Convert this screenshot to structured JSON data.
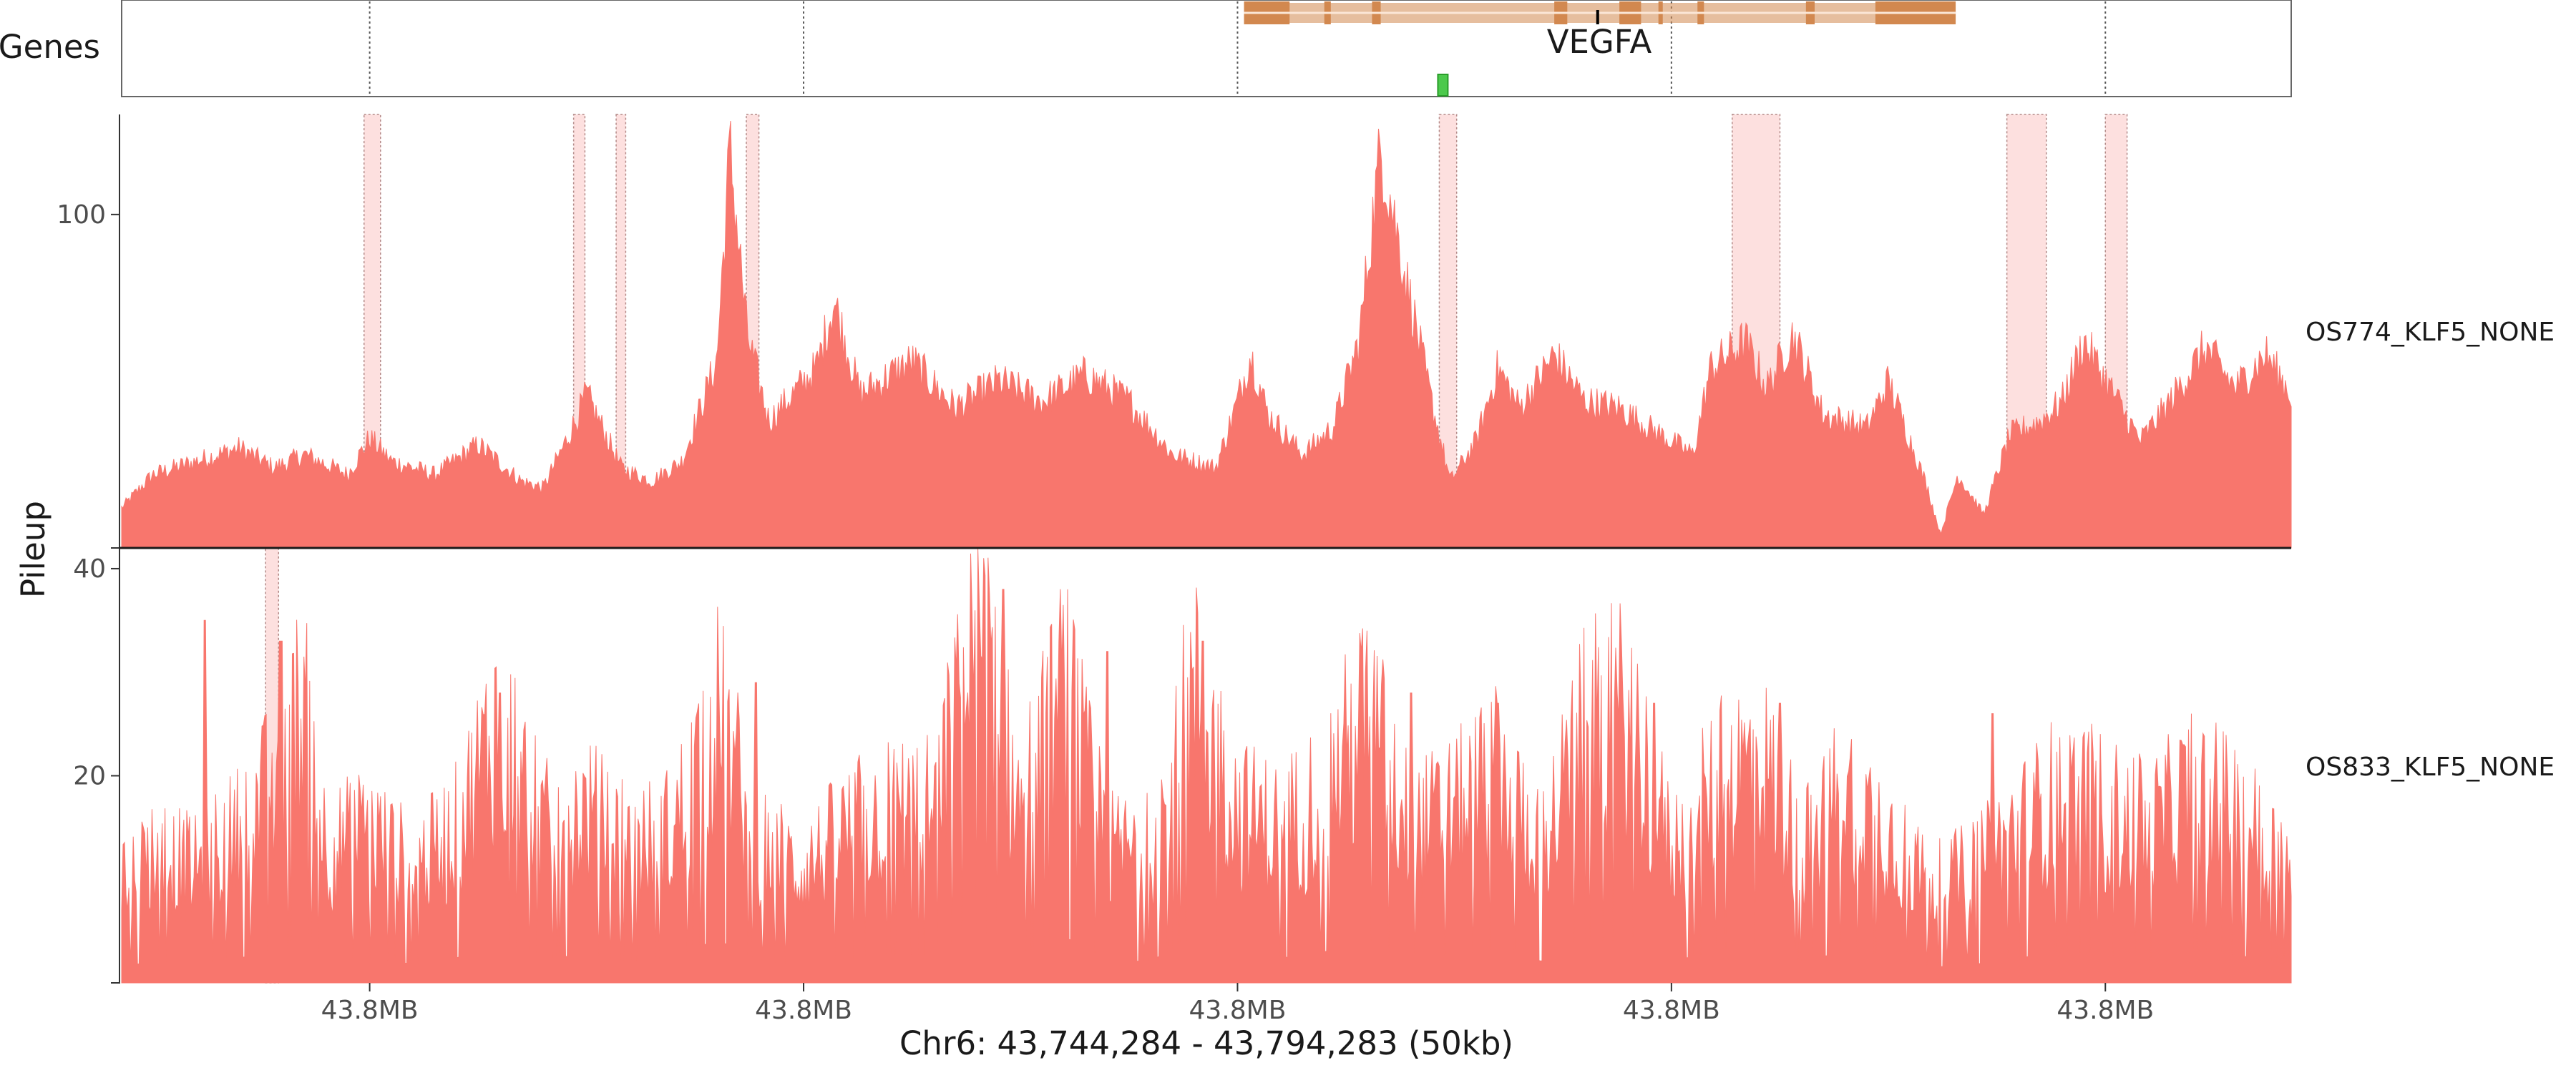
{
  "chart_data": {
    "type": "area",
    "genes_track": {
      "label": "Genes",
      "gene_name": "VEGFA",
      "gene_color": "#D2884F",
      "feature_color": "#4CC94C"
    },
    "xlabel": "Chr6: 43,744,284 - 43,794,283 (50kb)",
    "ylabel": "Pileup",
    "x_range": [
      43744284,
      43794283
    ],
    "x_ticks": [
      {
        "pos": 43750000,
        "label": "43.8MB"
      },
      {
        "pos": 43760000,
        "label": "43.8MB"
      },
      {
        "pos": 43770000,
        "label": "43.8MB"
      },
      {
        "pos": 43780000,
        "label": "43.8MB"
      },
      {
        "pos": 43790000,
        "label": "43.8MB"
      }
    ],
    "fill_color": "#F8766D",
    "peak_color": "#FDE0DF",
    "series": [
      {
        "name": "OS774_KLF5_NONE",
        "ylim": [
          0,
          130
        ],
        "y_ticks": [
          {
            "value": 100,
            "label": "100"
          }
        ],
        "profile": [
          [
            43744284,
            12
          ],
          [
            43745000,
            22
          ],
          [
            43746000,
            26
          ],
          [
            43747000,
            30
          ],
          [
            43747800,
            24
          ],
          [
            43748500,
            28
          ],
          [
            43749500,
            22
          ],
          [
            43750000,
            33
          ],
          [
            43750500,
            26
          ],
          [
            43751500,
            22
          ],
          [
            43752500,
            31
          ],
          [
            43753500,
            20
          ],
          [
            43754000,
            18
          ],
          [
            43754600,
            34
          ],
          [
            43755000,
            46
          ],
          [
            43755800,
            24
          ],
          [
            43756500,
            20
          ],
          [
            43757200,
            26
          ],
          [
            43758000,
            56
          ],
          [
            43758300,
            120
          ],
          [
            43758700,
            64
          ],
          [
            43759200,
            38
          ],
          [
            43760300,
            54
          ],
          [
            43760700,
            74
          ],
          [
            43761300,
            46
          ],
          [
            43762500,
            56
          ],
          [
            43763500,
            42
          ],
          [
            43764500,
            50
          ],
          [
            43765500,
            44
          ],
          [
            43766500,
            52
          ],
          [
            43767500,
            44
          ],
          [
            43768500,
            28
          ],
          [
            43769500,
            24
          ],
          [
            43770000,
            44
          ],
          [
            43770300,
            58
          ],
          [
            43770700,
            40
          ],
          [
            43771500,
            28
          ],
          [
            43772200,
            36
          ],
          [
            43772800,
            62
          ],
          [
            43773300,
            120
          ],
          [
            43773800,
            86
          ],
          [
            43774400,
            48
          ],
          [
            43774900,
            20
          ],
          [
            43775500,
            32
          ],
          [
            43776000,
            54
          ],
          [
            43776500,
            42
          ],
          [
            43777300,
            58
          ],
          [
            43778000,
            44
          ],
          [
            43778800,
            42
          ],
          [
            43779500,
            36
          ],
          [
            43780500,
            28
          ],
          [
            43780900,
            54
          ],
          [
            43781700,
            62
          ],
          [
            43782200,
            48
          ],
          [
            43782800,
            64
          ],
          [
            43783500,
            40
          ],
          [
            43784500,
            36
          ],
          [
            43785000,
            50
          ],
          [
            43785900,
            18
          ],
          [
            43786200,
            4
          ],
          [
            43786600,
            22
          ],
          [
            43787200,
            10
          ],
          [
            43787800,
            34
          ],
          [
            43788500,
            38
          ],
          [
            43789000,
            44
          ],
          [
            43789500,
            62
          ],
          [
            43790200,
            46
          ],
          [
            43790800,
            32
          ],
          [
            43791500,
            44
          ],
          [
            43792300,
            60
          ],
          [
            43793000,
            48
          ],
          [
            43793700,
            58
          ],
          [
            43794283,
            46
          ]
        ],
        "peaks": [
          [
            43749870,
            43750250
          ],
          [
            43754700,
            43754960
          ],
          [
            43755680,
            43755900
          ],
          [
            43758680,
            43758970
          ],
          [
            43774650,
            43775050
          ],
          [
            43781400,
            43782500
          ],
          [
            43787730,
            43788640
          ],
          [
            43790000,
            43790500
          ]
        ]
      },
      {
        "name": "OS833_KLF5_NONE",
        "ylim": [
          0,
          42
        ],
        "y_ticks": [
          {
            "value": 20,
            "label": "20"
          },
          {
            "value": 40,
            "label": "40"
          }
        ],
        "profile": [
          [
            43744284,
            10
          ],
          [
            43745000,
            14
          ],
          [
            43746000,
            12
          ],
          [
            43747000,
            16
          ],
          [
            43748000,
            22
          ],
          [
            43748500,
            30
          ],
          [
            43749000,
            14
          ],
          [
            43750000,
            16
          ],
          [
            43751000,
            12
          ],
          [
            43752000,
            16
          ],
          [
            43753000,
            28
          ],
          [
            43754000,
            16
          ],
          [
            43755000,
            18
          ],
          [
            43756000,
            14
          ],
          [
            43757000,
            16
          ],
          [
            43758000,
            28
          ],
          [
            43759000,
            14
          ],
          [
            43760000,
            12
          ],
          [
            43761000,
            16
          ],
          [
            43762000,
            18
          ],
          [
            43763000,
            18
          ],
          [
            43764000,
            36
          ],
          [
            43765000,
            18
          ],
          [
            43766000,
            30
          ],
          [
            43767000,
            14
          ],
          [
            43768000,
            14
          ],
          [
            43769000,
            30
          ],
          [
            43770000,
            18
          ],
          [
            43771000,
            16
          ],
          [
            43772000,
            20
          ],
          [
            43773000,
            28
          ],
          [
            43774000,
            16
          ],
          [
            43775000,
            18
          ],
          [
            43776000,
            22
          ],
          [
            43777000,
            14
          ],
          [
            43778000,
            26
          ],
          [
            43779000,
            28
          ],
          [
            43780000,
            14
          ],
          [
            43781000,
            20
          ],
          [
            43782000,
            24
          ],
          [
            43783000,
            14
          ],
          [
            43784000,
            20
          ],
          [
            43785000,
            16
          ],
          [
            43786000,
            10
          ],
          [
            43787000,
            12
          ],
          [
            43788000,
            16
          ],
          [
            43789000,
            20
          ],
          [
            43790000,
            18
          ],
          [
            43791000,
            16
          ],
          [
            43792000,
            20
          ],
          [
            43793000,
            18
          ],
          [
            43794283,
            12
          ]
        ],
        "spikes": [
          [
            43746200,
            35
          ],
          [
            43747950,
            33
          ],
          [
            43753000,
            28
          ],
          [
            43758900,
            29
          ],
          [
            43764600,
            38
          ],
          [
            43767000,
            32
          ],
          [
            43769200,
            33
          ],
          [
            43774000,
            28
          ],
          [
            43776000,
            27
          ],
          [
            43779600,
            27
          ],
          [
            43782500,
            27
          ],
          [
            43787400,
            26
          ],
          [
            43791800,
            23
          ]
        ],
        "peaks": [
          [
            43747600,
            43747900
          ]
        ]
      }
    ]
  }
}
